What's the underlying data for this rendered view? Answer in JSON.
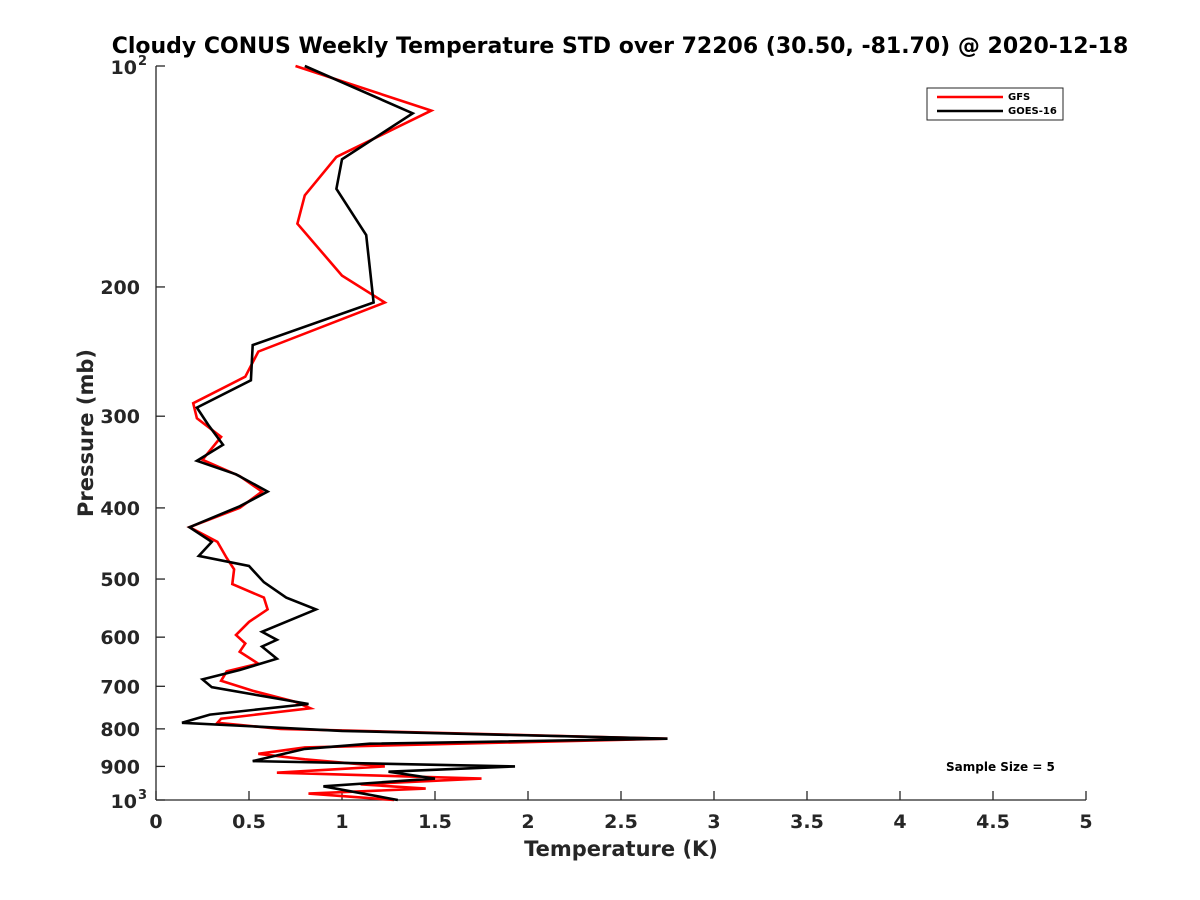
{
  "chart_data": {
    "type": "line",
    "title": "Cloudy CONUS Weekly Temperature STD over 72206 (30.50, -81.70) @ 2020-12-18",
    "xlabel": "Temperature (K)",
    "ylabel": "Pressure (mb)",
    "xlim": [
      0,
      5
    ],
    "ylim": [
      100,
      1000
    ],
    "yscale": "log",
    "ydirection": "reverse",
    "x_ticks": [
      "0",
      "0.5",
      "1",
      "1.5",
      "2",
      "2.5",
      "3",
      "3.5",
      "4",
      "4.5",
      "5"
    ],
    "y_ticks": [
      {
        "value": 100,
        "base": "10",
        "exp": "2"
      },
      {
        "value": 200,
        "label": "200"
      },
      {
        "value": 300,
        "label": "300"
      },
      {
        "value": 400,
        "label": "400"
      },
      {
        "value": 500,
        "label": "500"
      },
      {
        "value": 600,
        "label": "600"
      },
      {
        "value": 700,
        "label": "700"
      },
      {
        "value": 800,
        "label": "800"
      },
      {
        "value": 900,
        "label": "900"
      },
      {
        "value": 1000,
        "base": "10",
        "exp": "3"
      }
    ],
    "legend": {
      "location": "top-right",
      "entries": [
        "GFS",
        "GOES-16"
      ]
    },
    "annotation": "Sample Size = 5",
    "series": [
      {
        "name": "GFS",
        "color": "#ff0000",
        "points": [
          [
            0.75,
            100
          ],
          [
            1.48,
            115
          ],
          [
            0.97,
            133
          ],
          [
            0.8,
            150
          ],
          [
            0.76,
            164
          ],
          [
            1.0,
            193
          ],
          [
            1.23,
            210
          ],
          [
            0.55,
            245
          ],
          [
            0.48,
            265
          ],
          [
            0.2,
            288
          ],
          [
            0.22,
            302
          ],
          [
            0.35,
            320
          ],
          [
            0.25,
            344
          ],
          [
            0.45,
            362
          ],
          [
            0.57,
            380
          ],
          [
            0.45,
            400
          ],
          [
            0.18,
            425
          ],
          [
            0.33,
            445
          ],
          [
            0.38,
            468
          ],
          [
            0.42,
            485
          ],
          [
            0.41,
            508
          ],
          [
            0.58,
            530
          ],
          [
            0.6,
            550
          ],
          [
            0.5,
            572
          ],
          [
            0.43,
            596
          ],
          [
            0.48,
            612
          ],
          [
            0.45,
            628
          ],
          [
            0.55,
            652
          ],
          [
            0.38,
            668
          ],
          [
            0.35,
            688
          ],
          [
            0.52,
            710
          ],
          [
            0.75,
            735
          ],
          [
            0.83,
            750
          ],
          [
            0.35,
            775
          ],
          [
            0.33,
            785
          ],
          [
            0.67,
            800
          ],
          [
            2.75,
            825
          ],
          [
            0.8,
            848
          ],
          [
            0.55,
            865
          ],
          [
            0.8,
            880
          ],
          [
            1.23,
            900
          ],
          [
            0.65,
            918
          ],
          [
            1.75,
            935
          ],
          [
            1.1,
            952
          ],
          [
            1.45,
            965
          ],
          [
            0.82,
            980
          ],
          [
            1.28,
            1000
          ]
        ]
      },
      {
        "name": "GOES-16",
        "color": "#000000",
        "points": [
          [
            0.8,
            100
          ],
          [
            1.38,
            116
          ],
          [
            1.0,
            134
          ],
          [
            0.97,
            147
          ],
          [
            1.13,
            170
          ],
          [
            1.17,
            210
          ],
          [
            0.52,
            240
          ],
          [
            0.51,
            268
          ],
          [
            0.22,
            292
          ],
          [
            0.28,
            308
          ],
          [
            0.36,
            328
          ],
          [
            0.22,
            345
          ],
          [
            0.43,
            360
          ],
          [
            0.6,
            380
          ],
          [
            0.45,
            398
          ],
          [
            0.18,
            425
          ],
          [
            0.3,
            445
          ],
          [
            0.23,
            465
          ],
          [
            0.5,
            480
          ],
          [
            0.58,
            505
          ],
          [
            0.7,
            530
          ],
          [
            0.86,
            550
          ],
          [
            0.57,
            590
          ],
          [
            0.65,
            605
          ],
          [
            0.57,
            618
          ],
          [
            0.65,
            642
          ],
          [
            0.45,
            665
          ],
          [
            0.25,
            685
          ],
          [
            0.3,
            702
          ],
          [
            0.82,
            740
          ],
          [
            0.29,
            765
          ],
          [
            0.14,
            785
          ],
          [
            1.0,
            805
          ],
          [
            2.75,
            825
          ],
          [
            1.15,
            838
          ],
          [
            0.8,
            852
          ],
          [
            0.52,
            885
          ],
          [
            1.93,
            900
          ],
          [
            1.25,
            915
          ],
          [
            1.5,
            935
          ],
          [
            0.9,
            958
          ],
          [
            1.3,
            1000
          ]
        ]
      }
    ]
  }
}
